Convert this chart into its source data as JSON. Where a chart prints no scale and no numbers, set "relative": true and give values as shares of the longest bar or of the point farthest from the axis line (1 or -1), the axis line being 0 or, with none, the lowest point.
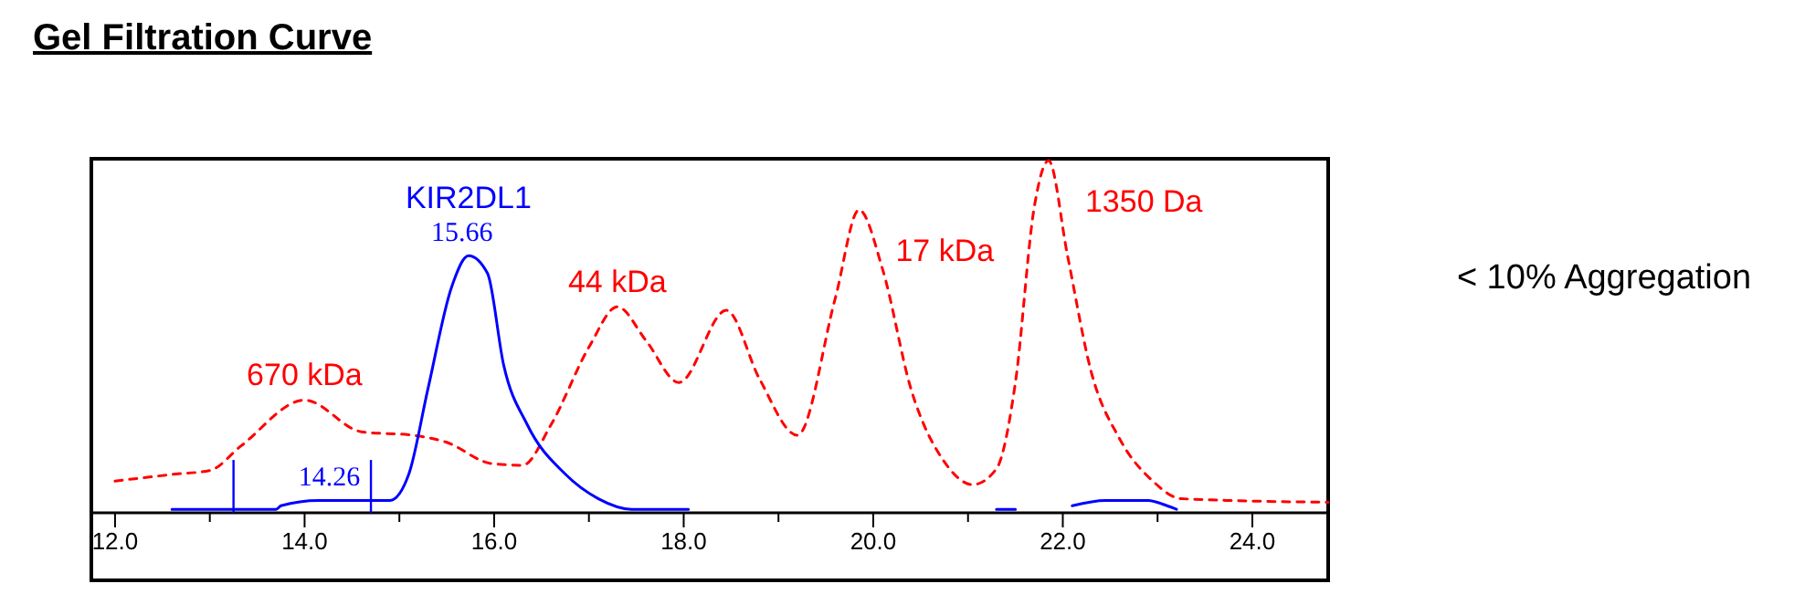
{
  "chart_data": {
    "type": "line",
    "title": "Gel Filtration Curve",
    "relative": true,
    "xlim": [
      11.75,
      24.8
    ],
    "xticks": [
      {
        "value": 12,
        "label": "12.0"
      },
      {
        "value": 13,
        "label": null
      },
      {
        "value": 14,
        "label": "14.0"
      },
      {
        "value": 15,
        "label": null
      },
      {
        "value": 16,
        "label": "16.0"
      },
      {
        "value": 17,
        "label": null
      },
      {
        "value": 18,
        "label": "18.0"
      },
      {
        "value": 19,
        "label": null
      },
      {
        "value": 20,
        "label": "20.0"
      },
      {
        "value": 21,
        "label": null
      },
      {
        "value": 22,
        "label": "22.0"
      },
      {
        "value": 23,
        "label": null
      },
      {
        "value": 24,
        "label": "24.0"
      }
    ],
    "grid": false,
    "series": [
      {
        "color": "#ff0000",
        "line_style": "dashed",
        "x": [
          12.0,
          12.64,
          13.0,
          13.33,
          14.0,
          14.6,
          15.15,
          15.5,
          15.97,
          16.3,
          16.6,
          17.0,
          17.3,
          17.6,
          17.95,
          18.45,
          18.8,
          19.2,
          19.6,
          19.85,
          20.1,
          20.4,
          20.75,
          21.05,
          21.3,
          21.5,
          21.7,
          21.85,
          22.05,
          22.3,
          22.6,
          22.95,
          23.25,
          24.8
        ],
        "values": [
          0.09,
          0.11,
          0.12,
          0.19,
          0.32,
          0.23,
          0.22,
          0.2,
          0.14,
          0.135,
          0.25,
          0.47,
          0.585,
          0.49,
          0.37,
          0.575,
          0.38,
          0.22,
          0.61,
          0.86,
          0.69,
          0.35,
          0.145,
          0.08,
          0.125,
          0.37,
          0.87,
          1.0,
          0.73,
          0.4,
          0.21,
          0.09,
          0.04,
          0.03
        ]
      },
      {
        "name": "KIR2DL1",
        "color": "#0000ff",
        "line_style": "solid",
        "x": [
          12.6,
          13.7,
          13.75,
          14.15,
          14.9,
          15.1,
          15.3,
          15.55,
          15.73,
          15.93,
          16.1,
          16.35,
          16.75,
          17.1,
          17.45,
          18.05,
          19.5,
          21.3,
          21.5,
          21.8,
          22.1,
          22.45,
          22.9,
          23.1,
          23.2
        ],
        "values": [
          0.01,
          0.01,
          0.02,
          0.035,
          0.035,
          0.11,
          0.35,
          0.64,
          0.73,
          0.68,
          0.42,
          0.25,
          0.11,
          0.04,
          0.01,
          0.01,
          null,
          0.01,
          0.01,
          null,
          0.02,
          0.035,
          0.035,
          0.02,
          0.01
        ]
      }
    ],
    "ref_lines": [
      {
        "axis": "x",
        "value": 13.25,
        "color": "#0000ff"
      },
      {
        "axis": "x",
        "value": 14.7,
        "color": "#0000ff"
      }
    ],
    "annotations": [
      {
        "text": "15.66",
        "x": 15.66,
        "y": 0.73
      },
      {
        "text": "14.26",
        "x": 14.26,
        "y": 0.035
      },
      {
        "text": "670 kDa",
        "x": 14.0,
        "y": 0.32
      },
      {
        "text": "44 kDa",
        "x": 17.3,
        "y": 0.585
      },
      {
        "text": "17 kDa",
        "x": 19.85,
        "y": 0.86
      },
      {
        "text": "1350 Da",
        "x": 21.85,
        "y": 1.0
      },
      "< 10% Aggregation"
    ]
  }
}
